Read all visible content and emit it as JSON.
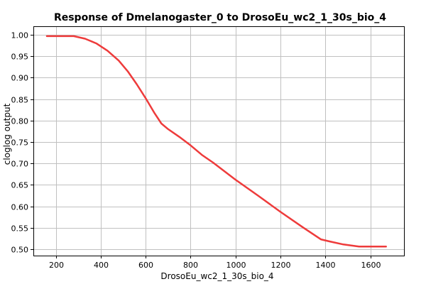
{
  "chart_data": {
    "type": "line",
    "title": "Response of Dmelanogaster_0 to DrosoEu_wc2_1_30s_bio_4",
    "xlabel": "DrosoEu_wc2_1_30s_bio_4",
    "ylabel": "cloglog output",
    "xlim": [
      100,
      1750
    ],
    "ylim": [
      0.485,
      1.02
    ],
    "xticks": [
      200,
      400,
      600,
      800,
      1000,
      1200,
      1400,
      1600
    ],
    "yticks": [
      "1.00",
      "0.95",
      "0.90",
      "0.85",
      "0.80",
      "0.75",
      "0.70",
      "0.65",
      "0.60",
      "0.55",
      "0.50"
    ],
    "grid": true,
    "legend": "none",
    "series": [
      {
        "color": "#ee3b3b",
        "x": [
          160,
          280,
          330,
          380,
          430,
          480,
          520,
          560,
          600,
          640,
          670,
          700,
          750,
          800,
          850,
          900,
          1000,
          1100,
          1200,
          1300,
          1380,
          1420,
          1480,
          1550,
          1600,
          1670
        ],
        "y": [
          0.997,
          0.997,
          0.991,
          0.98,
          0.963,
          0.94,
          0.915,
          0.885,
          0.852,
          0.817,
          0.793,
          0.78,
          0.762,
          0.742,
          0.72,
          0.702,
          0.662,
          0.625,
          0.587,
          0.551,
          0.523,
          0.518,
          0.511,
          0.506,
          0.506,
          0.506
        ]
      }
    ]
  }
}
